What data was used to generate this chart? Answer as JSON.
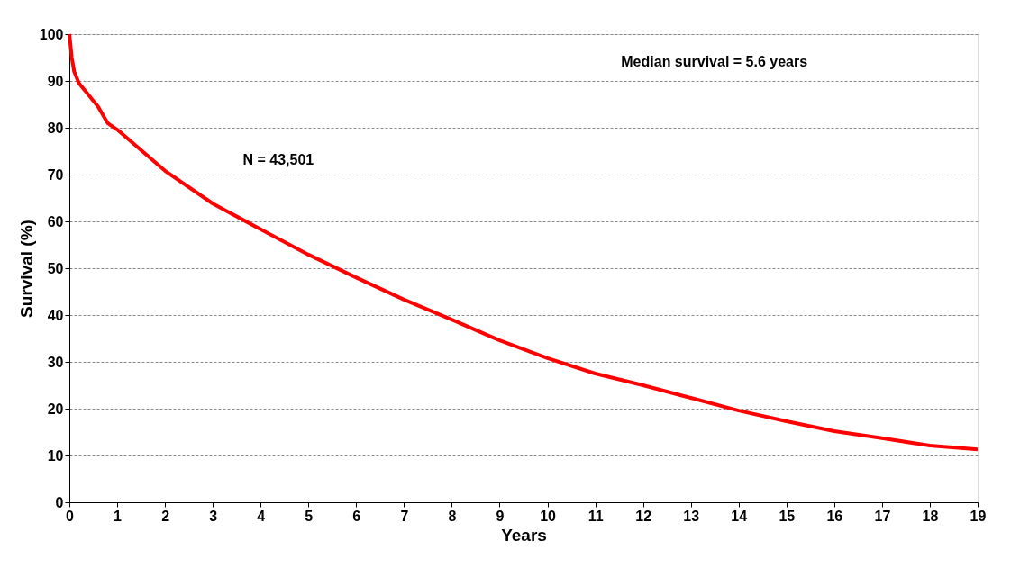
{
  "chart_data": {
    "type": "line",
    "xlabel": "Years",
    "ylabel": "Survival (%)",
    "annotations": [
      "Median survival = 5.6 years",
      "N = 43,501"
    ],
    "x": [
      0,
      0.05,
      0.1,
      0.2,
      0.4,
      0.6,
      0.8,
      1,
      2,
      3,
      4,
      5,
      6,
      7,
      8,
      9,
      10,
      11,
      12,
      13,
      14,
      15,
      16,
      17,
      18,
      19
    ],
    "series": [
      {
        "color": "#ff0000",
        "values": [
          100,
          95,
          92,
          89.5,
          87,
          84.5,
          81,
          79.6,
          70.8,
          63.8,
          58.3,
          52.9,
          48,
          43.3,
          39,
          34.6,
          30.8,
          27.5,
          25,
          22.3,
          19.6,
          17.3,
          15.2,
          13.7,
          12.1,
          11.3
        ]
      }
    ],
    "xlim": [
      0,
      19
    ],
    "xticks": [
      0,
      1,
      2,
      3,
      4,
      5,
      6,
      7,
      8,
      9,
      10,
      11,
      12,
      13,
      14,
      15,
      16,
      17,
      18,
      19
    ],
    "ylim": [
      0,
      100
    ],
    "yticks": [
      0,
      10,
      20,
      30,
      40,
      50,
      60,
      70,
      80,
      90,
      100
    ],
    "grid": "y",
    "marker": "none",
    "line_style": "solid"
  }
}
